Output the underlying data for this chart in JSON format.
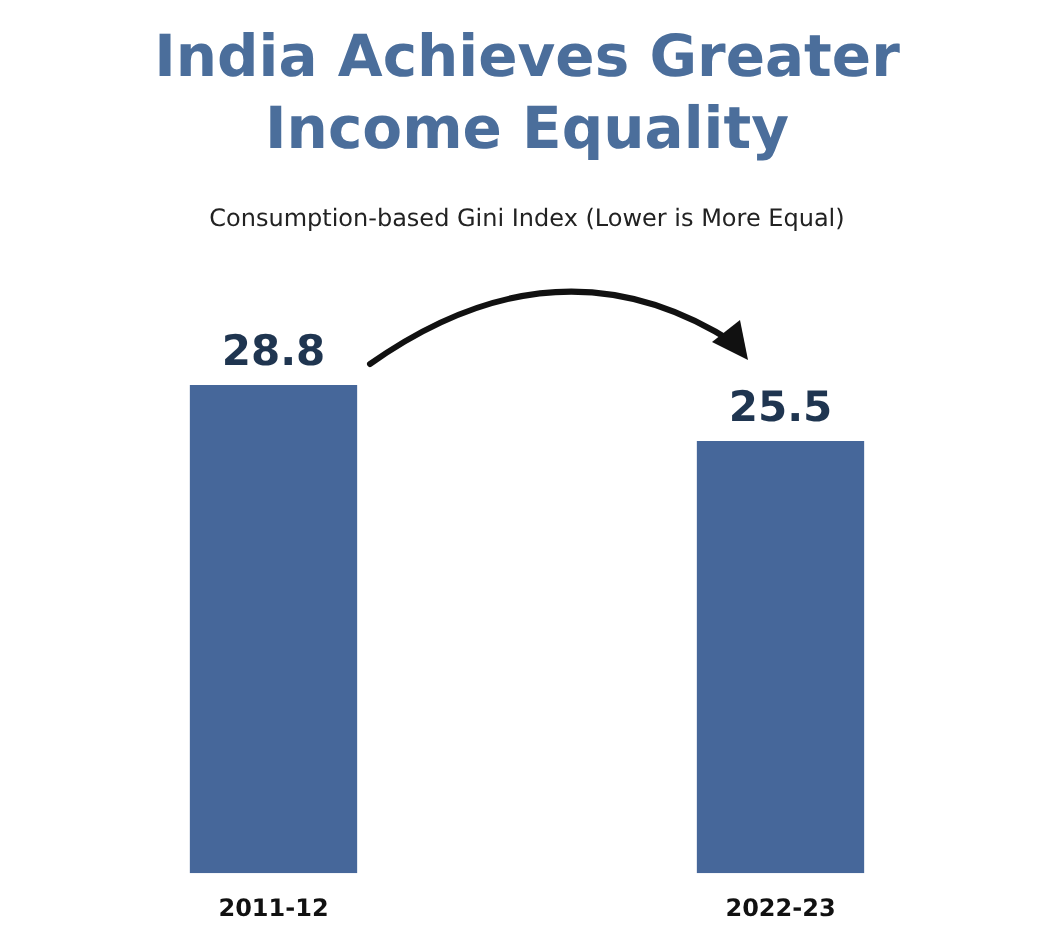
{
  "chart_data": {
    "type": "bar",
    "title": "India Achieves Greater Income Equality",
    "subtitle": "Consumption-based Gini Index (Lower is More Equal)",
    "categories": [
      "2011-12",
      "2022-23"
    ],
    "values": [
      28.8,
      25.5
    ],
    "color": "#46679a",
    "data_labels": true
  }
}
